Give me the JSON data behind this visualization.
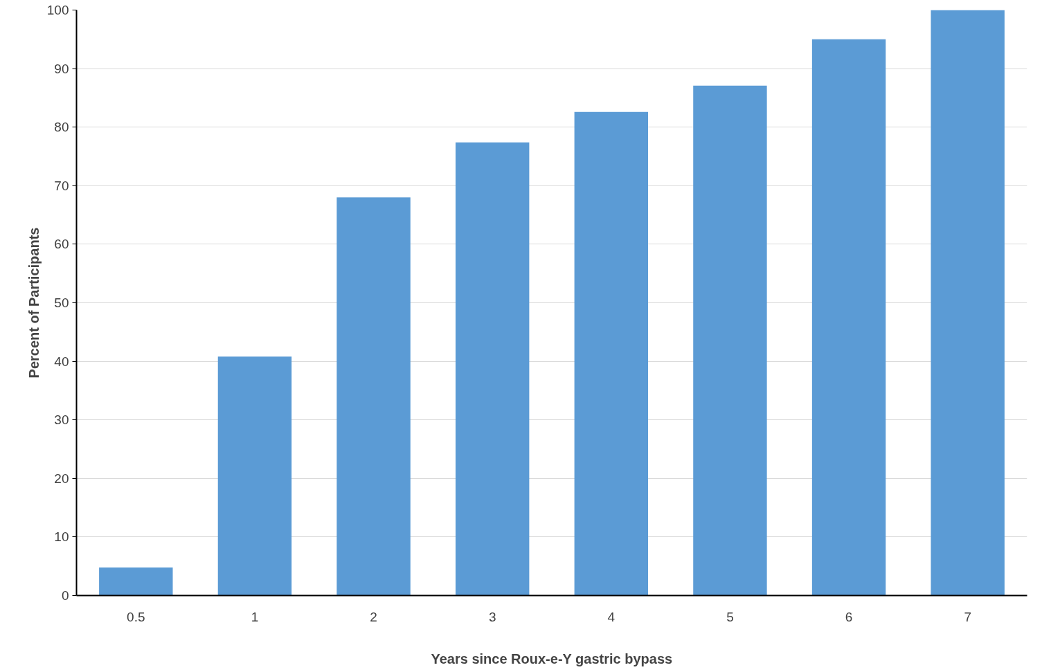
{
  "chart_data": {
    "type": "bar",
    "xlabel": "Years since Roux-e-Y gastric bypass",
    "ylabel": "Percent of Participants",
    "categories": [
      "0.5",
      "1",
      "2",
      "3",
      "4",
      "5",
      "6",
      "7"
    ],
    "values": [
      4.8,
      40.8,
      68.0,
      77.4,
      82.6,
      87.1,
      95.0,
      100.0
    ],
    "color": "#5b9bd5",
    "ylim": [
      0,
      100
    ],
    "yticks": [
      0,
      10,
      20,
      30,
      40,
      50,
      60,
      70,
      80,
      90,
      100
    ],
    "grid": "y"
  }
}
